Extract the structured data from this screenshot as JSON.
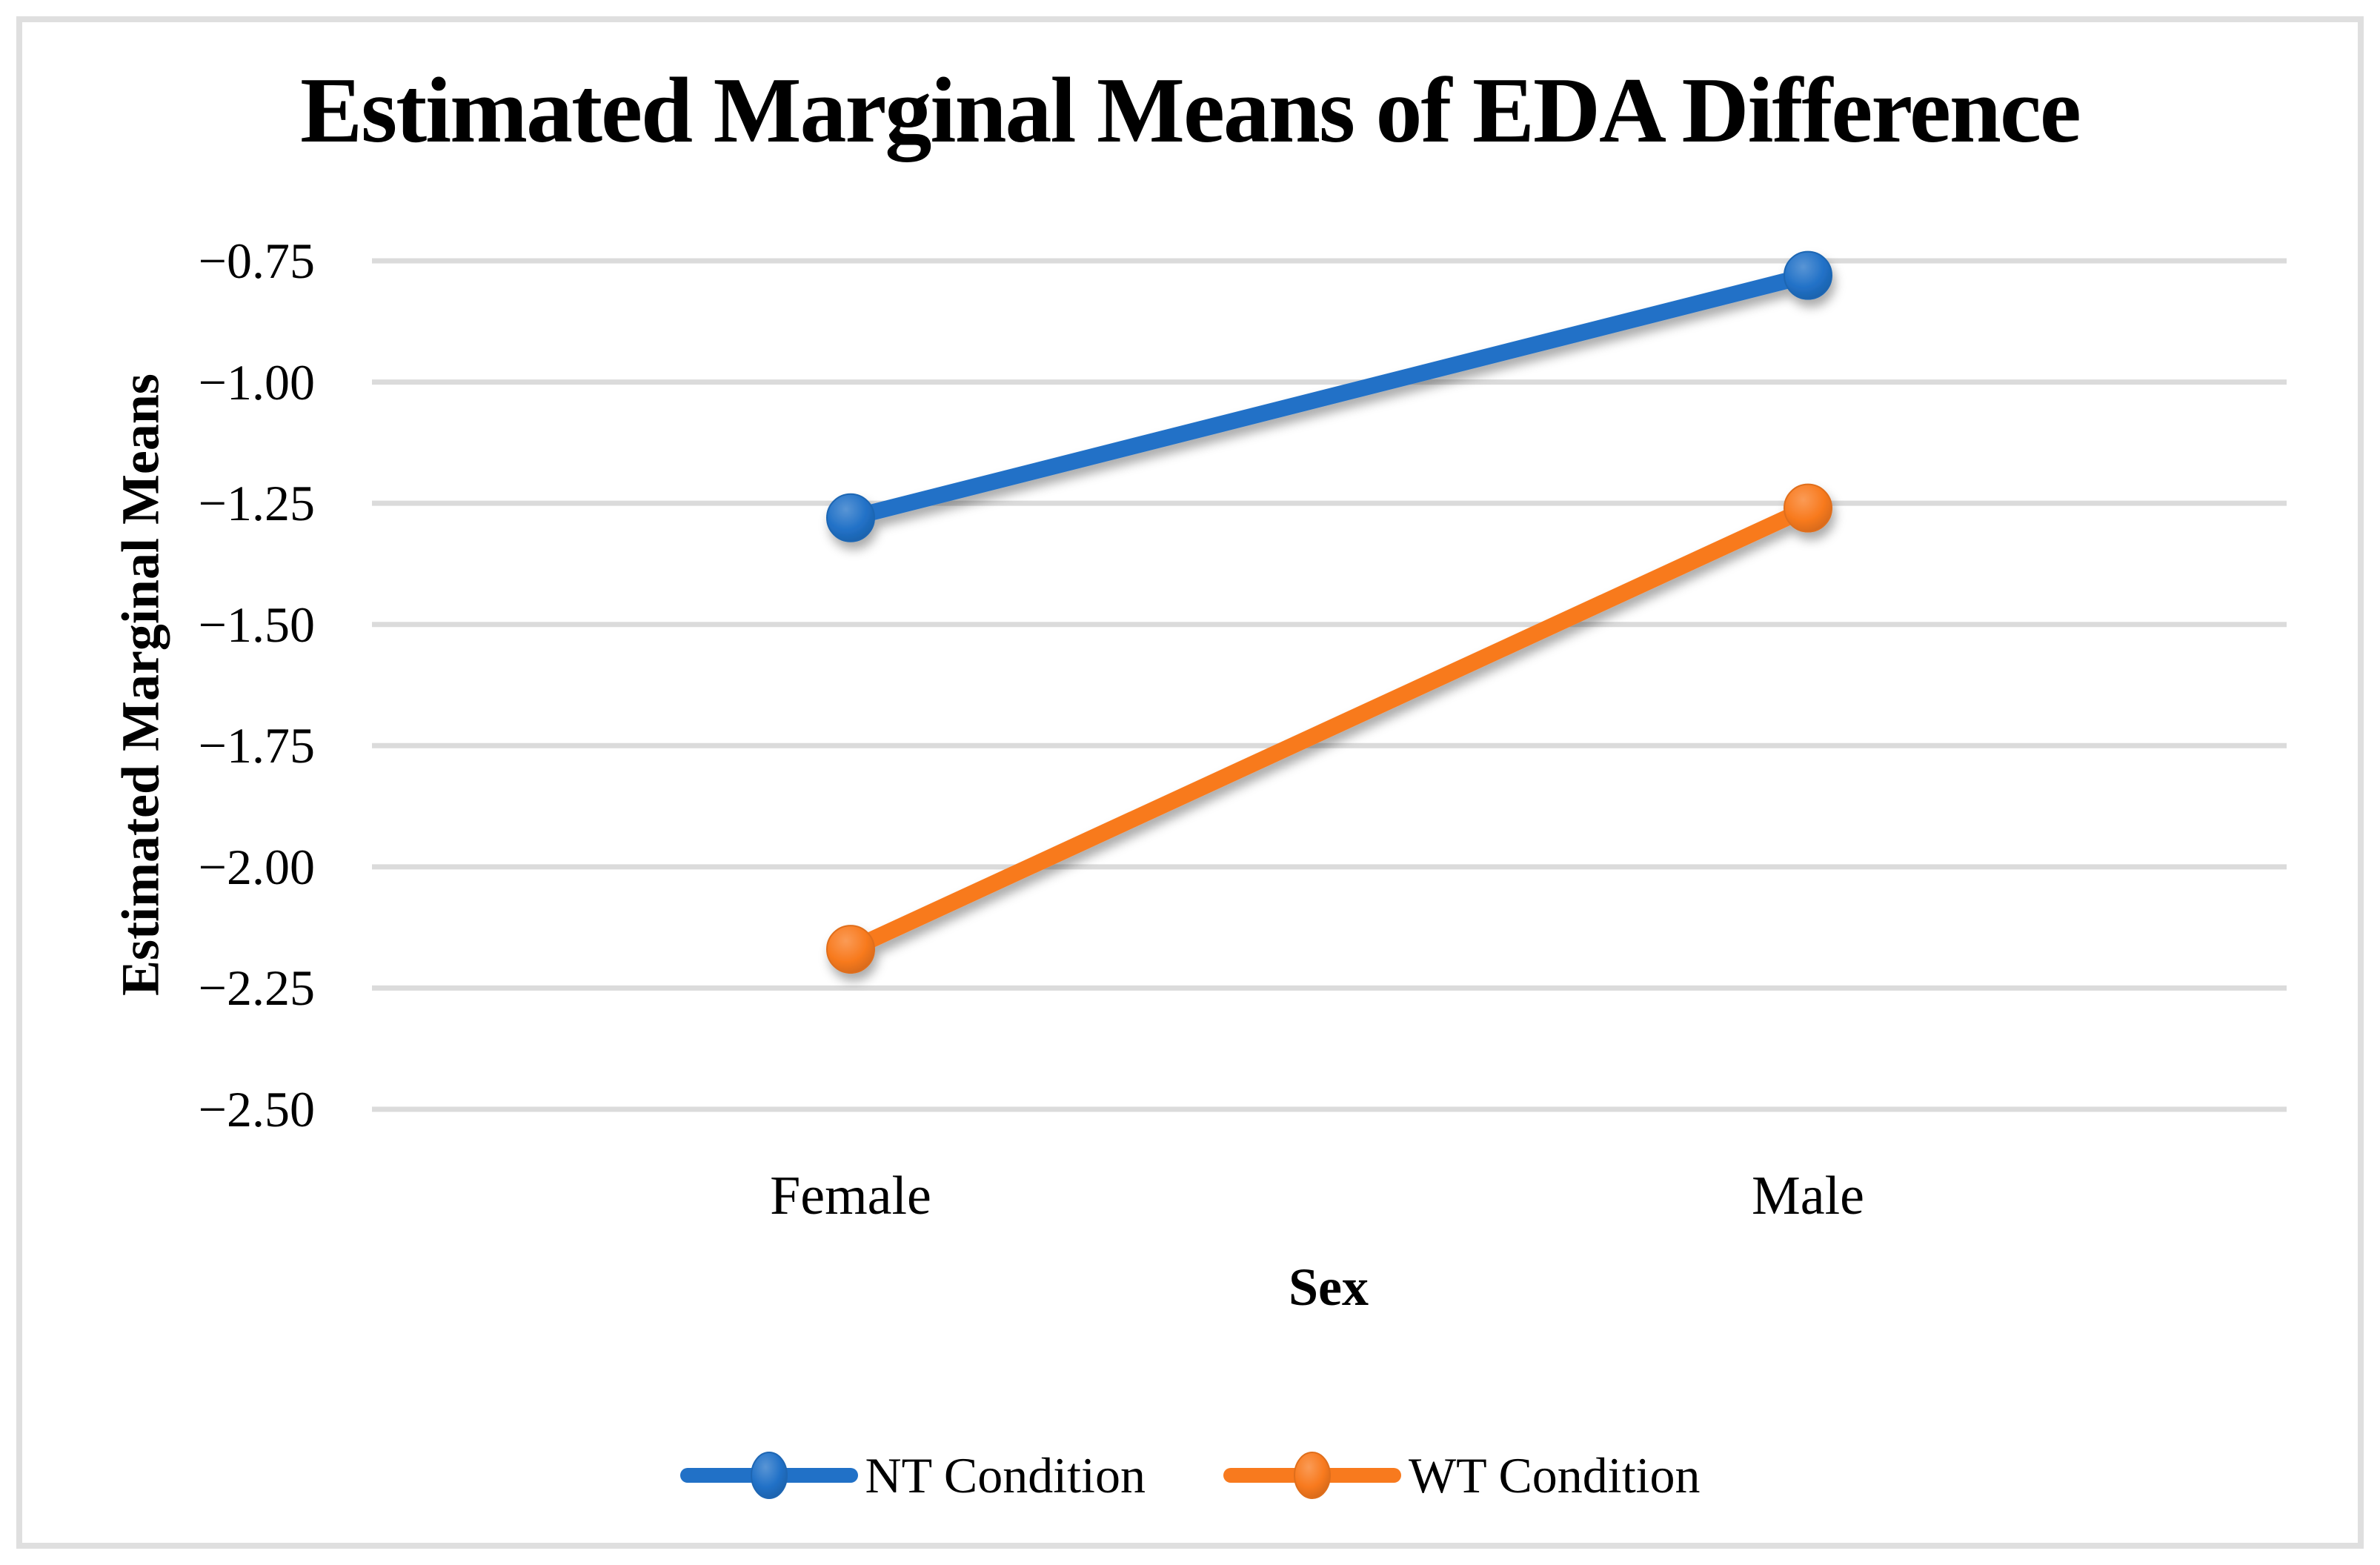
{
  "figure": {
    "background": "#FFFFFF",
    "frame_border_color": "#DFDFDF"
  },
  "chart_data": {
    "type": "line",
    "title": "Estimated Marginal Means of EDA Difference",
    "xlabel": "Sex",
    "ylabel": "Estimated Marginal Means",
    "categories": [
      "Female",
      "Male"
    ],
    "series": [
      {
        "name": "NT Condition",
        "color": "#2171C7",
        "values": [
          -1.28,
          -0.78
        ]
      },
      {
        "name": "WT Condition",
        "color": "#F87A1E",
        "values": [
          -2.17,
          -1.26
        ]
      }
    ],
    "ylim": [
      -2.5,
      -0.75
    ],
    "ytick_step": 0.25,
    "ytick_labels": [
      "−0.75",
      "−1.00",
      "−1.25",
      "−1.50",
      "−1.75",
      "−2.00",
      "−2.25",
      "−2.50"
    ],
    "grid": "horizontal",
    "gridline_color": "#DBDBDB",
    "legend_position": "bottom",
    "legend_entries": [
      "NT Condition",
      "WT Condition"
    ]
  }
}
